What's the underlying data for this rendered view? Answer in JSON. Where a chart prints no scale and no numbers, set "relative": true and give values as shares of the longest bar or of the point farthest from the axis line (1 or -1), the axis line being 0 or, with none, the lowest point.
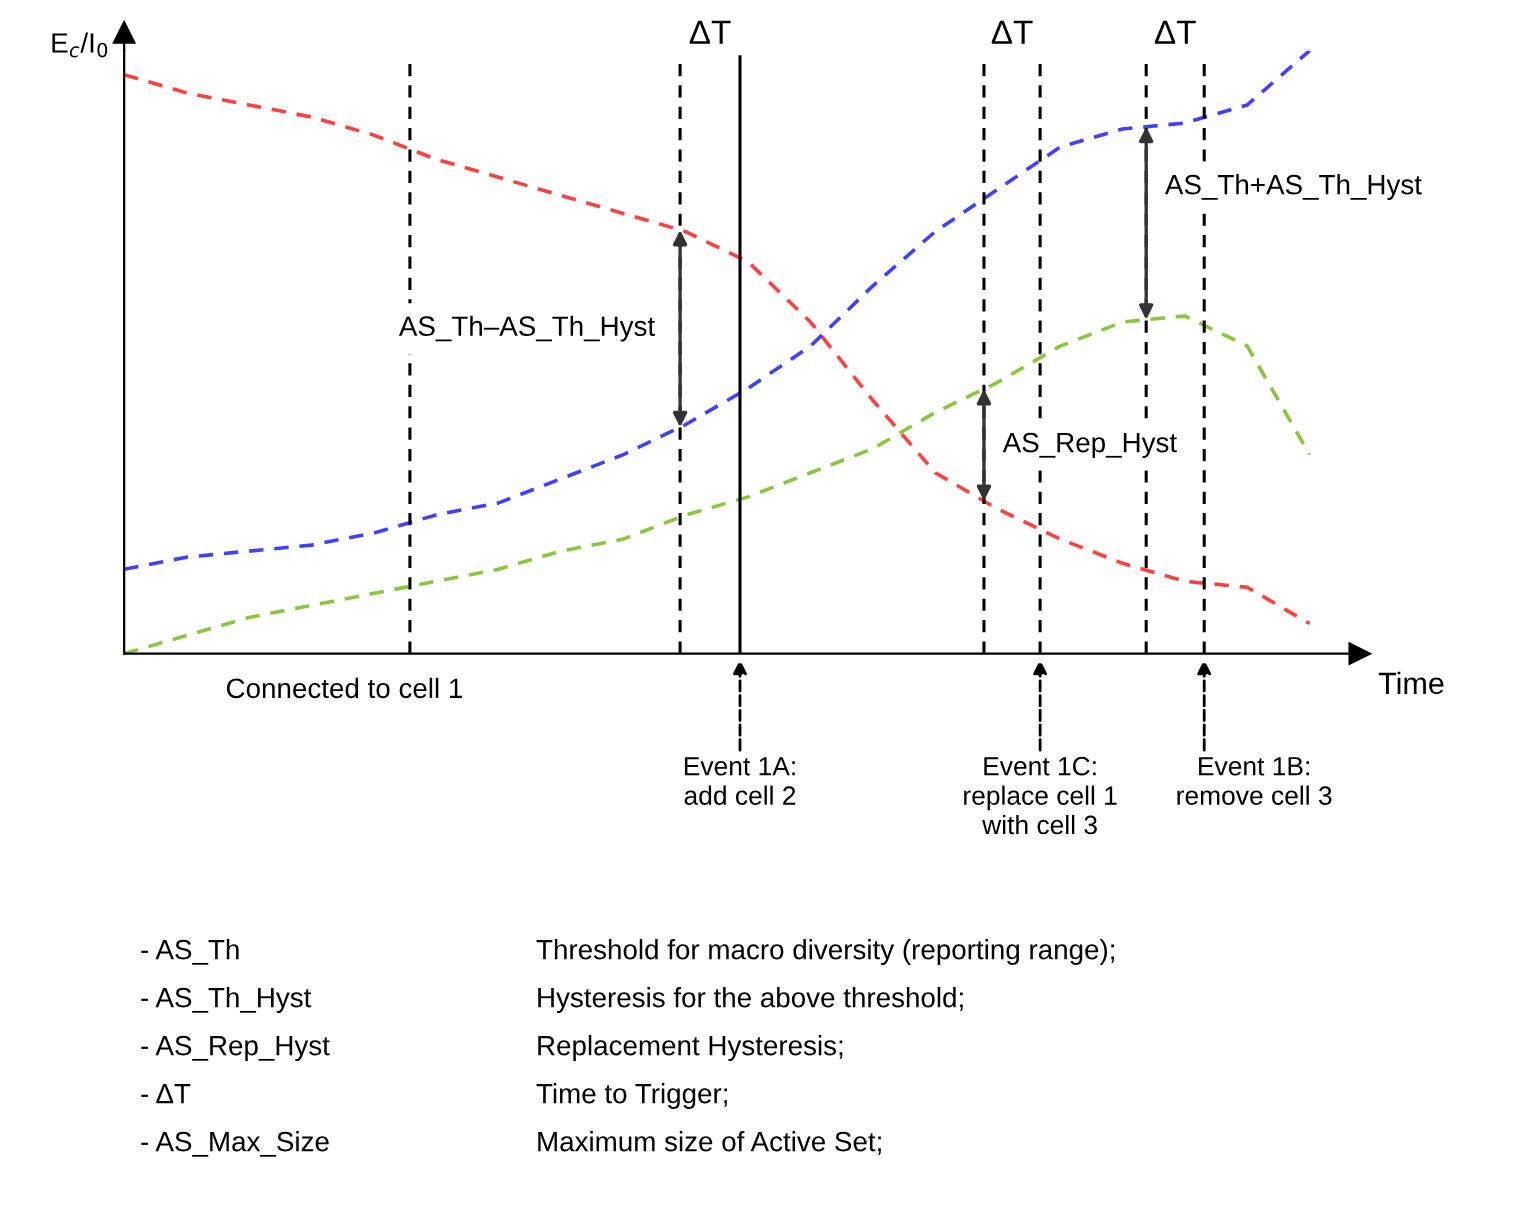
{
  "chart_data": {
    "type": "line",
    "relative": true,
    "xlabel": "Time",
    "ylabel": "E$_{c}$/I$_{0}$",
    "line_style": "dashed",
    "marker": "none",
    "grid": false,
    "tick_labels": false,
    "categories": [
      null,
      null,
      null,
      null,
      null,
      null,
      null,
      null,
      null,
      null,
      null,
      null,
      null,
      null,
      null,
      null,
      null,
      null,
      null,
      null
    ],
    "series": [
      {
        "color": "#ff4040",
        "values": [
          0.96,
          0.93,
          0.91,
          0.89,
          0.86,
          0.82,
          0.79,
          0.76,
          0.73,
          0.7,
          0.65,
          0.55,
          0.42,
          0.3,
          0.24,
          0.19,
          0.15,
          0.12,
          0.11,
          0.05
        ]
      },
      {
        "color": "#4040ff",
        "values": [
          0.14,
          0.16,
          0.17,
          0.18,
          0.2,
          0.23,
          0.25,
          0.29,
          0.33,
          0.38,
          0.44,
          0.51,
          0.61,
          0.7,
          0.77,
          0.84,
          0.87,
          0.88,
          0.91,
          1.0
        ]
      },
      {
        "color": "#8cc63f",
        "values": [
          0.0,
          0.03,
          0.06,
          0.08,
          0.1,
          0.12,
          0.14,
          0.17,
          0.19,
          0.23,
          0.26,
          0.3,
          0.34,
          0.4,
          0.45,
          0.51,
          0.55,
          0.56,
          0.51,
          0.33
        ]
      }
    ],
    "annotations": [
      "ΔT",
      "ΔT",
      "ΔT",
      "AS_Th–AS_Th_Hyst",
      "AS_Rep_Hyst",
      "AS_Th+AS_Th_Hyst",
      "Connected to cell 1",
      "Event 1A:\nadd cell 2",
      "Event 1C:\nreplace cell 1\nwith cell 3",
      "Event 1B:\nremove cell 3",
      "- AS_Th\tThreshold for macro diversity (reporting range);",
      "- AS_Th_Hyst\tHysteresis for the above threshold;",
      "- AS_Rep_Hyst\tReplacement Hysteresis;",
      "- ΔT\tTime to Trigger;",
      "- AS_Max_Size\tMaximum size of Active Set;"
    ]
  }
}
